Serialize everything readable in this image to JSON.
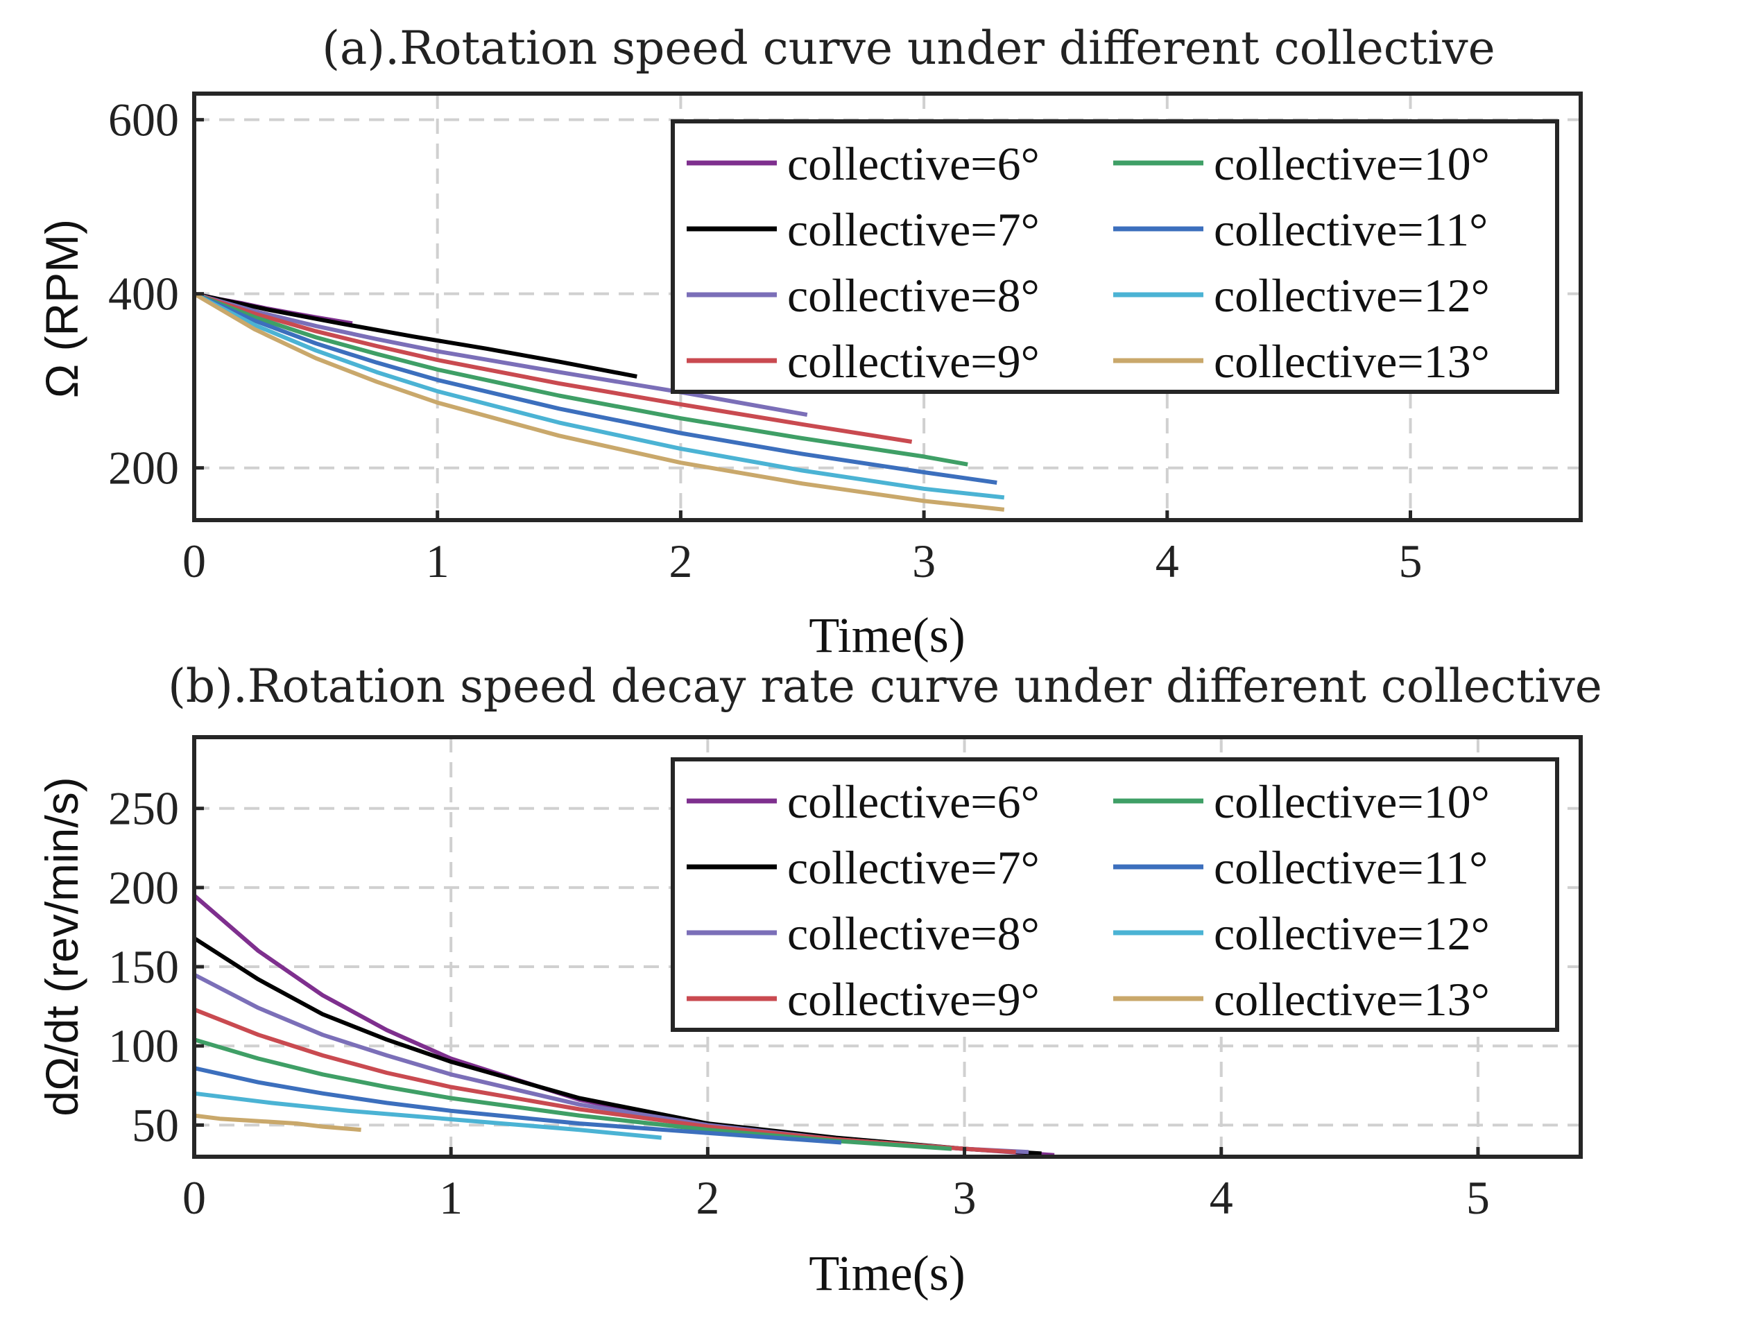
{
  "chart_data": [
    {
      "type": "line",
      "title": "(a).Rotation speed curve under different collective",
      "xlabel": "Time(s)",
      "ylabel": "Ω (RPM)",
      "xlim": [
        0,
        5.7
      ],
      "ylim": [
        140,
        630
      ],
      "xticks": [
        0,
        1,
        2,
        3,
        4,
        5
      ],
      "yticks": [
        200,
        400,
        600
      ],
      "grid": true,
      "legend_position": "top-right",
      "series": [
        {
          "name": "collective=6°",
          "color": "#7e2f8e",
          "x": [
            0,
            0.1,
            0.2,
            0.3,
            0.4,
            0.5,
            0.65
          ],
          "y": [
            400,
            394,
            389,
            383,
            378,
            373,
            366
          ]
        },
        {
          "name": "collective=7°",
          "color": "#000000",
          "x": [
            0,
            0.3,
            0.6,
            0.9,
            1.2,
            1.5,
            1.82
          ],
          "y": [
            400,
            382,
            366,
            351,
            337,
            322,
            305
          ]
        },
        {
          "name": "collective=8°",
          "color": "#7b6fb8",
          "x": [
            0,
            0.25,
            0.5,
            0.75,
            1.0,
            1.5,
            2.0,
            2.52
          ],
          "y": [
            400,
            380,
            363,
            348,
            334,
            310,
            287,
            261
          ]
        },
        {
          "name": "collective=9°",
          "color": "#c94a50",
          "x": [
            0,
            0.25,
            0.5,
            0.75,
            1.0,
            1.5,
            2.0,
            2.5,
            2.95
          ],
          "y": [
            400,
            377,
            357,
            340,
            324,
            297,
            273,
            250,
            230
          ]
        },
        {
          "name": "collective=10°",
          "color": "#3f9f66",
          "x": [
            0,
            0.25,
            0.5,
            0.75,
            1.0,
            1.5,
            2.0,
            2.5,
            3.0,
            3.18
          ],
          "y": [
            400,
            373,
            350,
            331,
            313,
            283,
            257,
            234,
            213,
            204
          ]
        },
        {
          "name": "collective=11°",
          "color": "#3c6fbd",
          "x": [
            0,
            0.25,
            0.5,
            0.75,
            1.0,
            1.5,
            2.0,
            2.5,
            3.0,
            3.3
          ],
          "y": [
            400,
            369,
            343,
            321,
            301,
            268,
            240,
            216,
            195,
            183
          ]
        },
        {
          "name": "collective=12°",
          "color": "#4bb3d4",
          "x": [
            0,
            0.25,
            0.5,
            0.75,
            1.0,
            1.5,
            2.0,
            2.5,
            3.0,
            3.33
          ],
          "y": [
            400,
            364,
            335,
            310,
            288,
            252,
            222,
            197,
            176,
            166
          ]
        },
        {
          "name": "collective=13°",
          "color": "#c9a86b",
          "x": [
            0,
            0.25,
            0.5,
            0.75,
            1.0,
            1.5,
            2.0,
            2.5,
            3.0,
            3.33
          ],
          "y": [
            400,
            359,
            326,
            299,
            275,
            237,
            206,
            182,
            162,
            152
          ]
        }
      ]
    },
    {
      "type": "line",
      "title": "(b).Rotation speed decay rate curve under different collective",
      "xlabel": "Time(s)",
      "ylabel": "dΩ/dt (rev/min/s)",
      "xlim": [
        0,
        5.4
      ],
      "ylim": [
        30,
        295
      ],
      "xticks": [
        0,
        1,
        2,
        3,
        4,
        5
      ],
      "yticks": [
        50,
        100,
        150,
        200,
        250
      ],
      "grid": true,
      "legend_position": "top-right",
      "series": [
        {
          "name": "collective=6°",
          "color": "#7e2f8e",
          "x": [
            0,
            0.25,
            0.5,
            0.75,
            1.0,
            1.5,
            2.0,
            2.5,
            3.0,
            3.35
          ],
          "y": [
            195,
            160,
            132,
            110,
            92,
            66,
            50,
            41,
            35,
            31
          ]
        },
        {
          "name": "collective=7°",
          "color": "#000000",
          "x": [
            0,
            0.25,
            0.5,
            0.75,
            1.0,
            1.5,
            2.0,
            2.5,
            3.0,
            3.3
          ],
          "y": [
            168,
            142,
            120,
            104,
            90,
            67,
            51,
            42,
            35,
            32
          ]
        },
        {
          "name": "collective=8°",
          "color": "#7b6fb8",
          "x": [
            0,
            0.25,
            0.5,
            0.75,
            1.0,
            1.5,
            2.0,
            2.5,
            3.0,
            3.25
          ],
          "y": [
            145,
            124,
            107,
            94,
            82,
            63,
            50,
            41,
            35,
            33
          ]
        },
        {
          "name": "collective=9°",
          "color": "#c94a50",
          "x": [
            0,
            0.25,
            0.5,
            0.75,
            1.0,
            1.5,
            2.0,
            2.5,
            3.0,
            3.2
          ],
          "y": [
            123,
            107,
            94,
            83,
            74,
            60,
            49,
            41,
            35,
            33
          ]
        },
        {
          "name": "collective=10°",
          "color": "#3f9f66",
          "x": [
            0,
            0.25,
            0.5,
            0.75,
            1.0,
            1.5,
            2.0,
            2.5,
            2.95
          ],
          "y": [
            104,
            92,
            82,
            74,
            67,
            56,
            47,
            40,
            35
          ]
        },
        {
          "name": "collective=11°",
          "color": "#3c6fbd",
          "x": [
            0,
            0.25,
            0.5,
            0.75,
            1.0,
            1.5,
            2.0,
            2.52
          ],
          "y": [
            86,
            77,
            70,
            64,
            59,
            51,
            45,
            39
          ]
        },
        {
          "name": "collective=12°",
          "color": "#4bb3d4",
          "x": [
            0,
            0.3,
            0.6,
            0.9,
            1.2,
            1.5,
            1.82
          ],
          "y": [
            70,
            64,
            59,
            55,
            51,
            47,
            42
          ]
        },
        {
          "name": "collective=13°",
          "color": "#c9a86b",
          "x": [
            0,
            0.1,
            0.2,
            0.3,
            0.4,
            0.5,
            0.65
          ],
          "y": [
            56,
            54,
            53,
            52,
            51,
            49,
            47
          ]
        }
      ]
    }
  ]
}
